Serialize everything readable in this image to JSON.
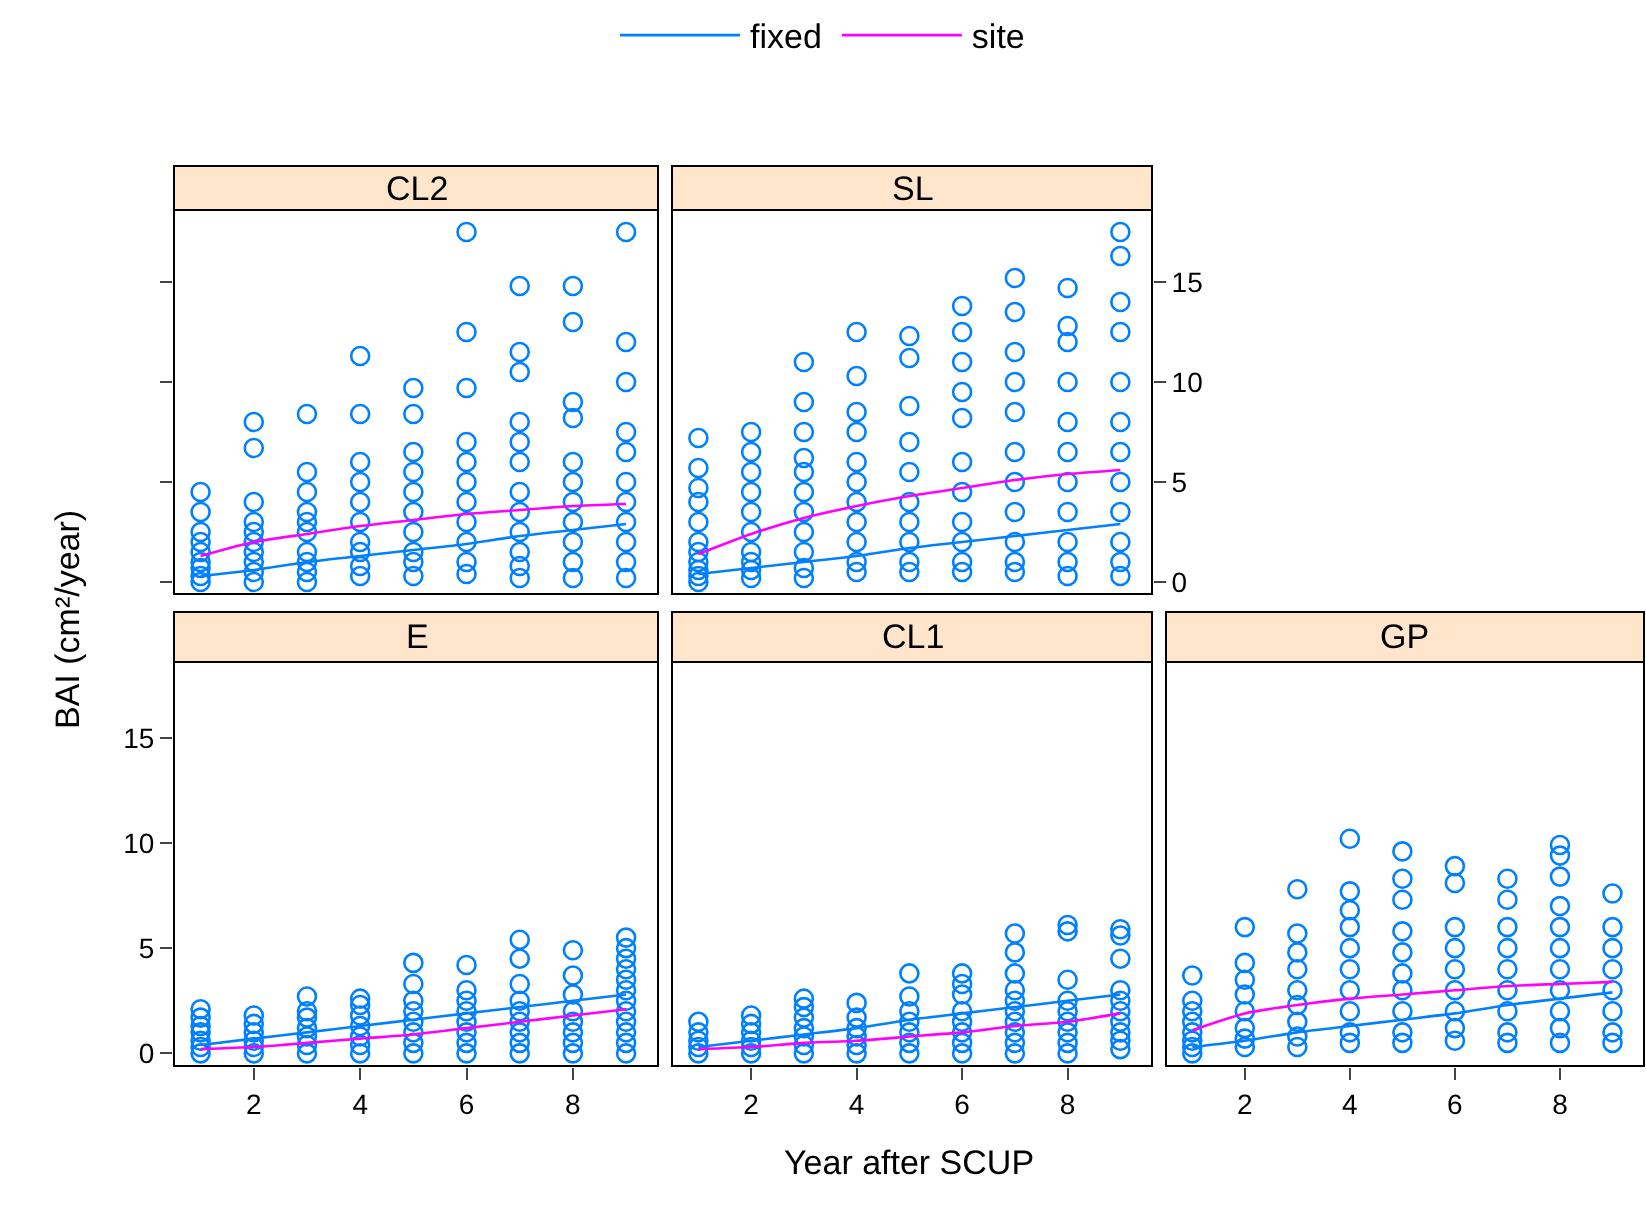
{
  "chart_data": [
    {
      "type": "scatter",
      "title": "CL2",
      "xlabel": "Year after SCUP",
      "ylabel": "BAI (cm²/year)",
      "legend": "top",
      "line_style": "solid",
      "tick_labels": false,
      "xlim": [
        0.5,
        9.6
      ],
      "ylim": [
        -0.6,
        18.6
      ],
      "xticks": [
        2,
        4,
        6,
        8
      ],
      "yticks": [
        0,
        5,
        10,
        15
      ],
      "series": [
        {
          "marker": "circle",
          "color": "#0080ff",
          "x": [
            1,
            1,
            1,
            1,
            1,
            1,
            1,
            1,
            1,
            2,
            2,
            2,
            2,
            2,
            2,
            2,
            2,
            2,
            2,
            3,
            3,
            3,
            3,
            3,
            3,
            3,
            3,
            3,
            3,
            4,
            4,
            4,
            4,
            4,
            4,
            4,
            4,
            4,
            4,
            5,
            5,
            5,
            5,
            5,
            5,
            5,
            5,
            5,
            5,
            6,
            6,
            6,
            6,
            6,
            6,
            6,
            6,
            6,
            6,
            6,
            7,
            7,
            7,
            7,
            7,
            7,
            7,
            7,
            7,
            7,
            7,
            7,
            8,
            8,
            8,
            8,
            8,
            8,
            8,
            8,
            8,
            8,
            8,
            9,
            9,
            9,
            9,
            9,
            9,
            9,
            9,
            9,
            9,
            9
          ],
          "values": [
            0,
            0.3,
            0.7,
            1,
            1.5,
            2,
            2.5,
            3.5,
            4.5,
            0,
            0.5,
            1,
            1.5,
            2,
            2.5,
            3,
            4,
            6.7,
            8,
            0,
            0.5,
            1,
            1.5,
            2.5,
            3,
            3.5,
            4.5,
            5.5,
            8.4,
            0.3,
            0.8,
            1.5,
            2,
            3,
            4,
            5,
            6,
            8.4,
            11.3,
            0.3,
            1,
            1.5,
            2.5,
            3.5,
            4.5,
            5.5,
            6.5,
            8.4,
            9.7,
            0.4,
            1,
            2,
            3,
            4,
            5,
            6,
            7,
            9.7,
            12.5,
            17.5,
            0.2,
            0.8,
            1.5,
            2.5,
            3.5,
            4.5,
            6,
            7,
            8,
            10.5,
            11.5,
            14.8,
            0.2,
            1,
            2,
            3,
            4,
            5,
            6,
            8.2,
            9,
            13,
            14.8,
            0.2,
            1,
            2,
            3,
            4,
            5,
            6.5,
            7.5,
            10,
            12,
            17.5
          ]
        },
        {
          "type": "line",
          "name": "fixed",
          "color": "#0080ff",
          "x": [
            1,
            2,
            3,
            4,
            5,
            6,
            7,
            8,
            9
          ],
          "values": [
            0.3,
            0.6,
            1.0,
            1.3,
            1.6,
            1.9,
            2.3,
            2.6,
            2.9
          ]
        },
        {
          "type": "line",
          "name": "site",
          "color": "#ff00ff",
          "x": [
            1,
            2,
            3,
            4,
            5,
            6,
            7,
            8,
            9
          ],
          "values": [
            1.3,
            2.0,
            2.4,
            2.8,
            3.1,
            3.4,
            3.6,
            3.8,
            3.9
          ]
        }
      ]
    },
    {
      "type": "scatter",
      "title": "SL",
      "line_style": "solid",
      "tick_labels": "y",
      "xlim": [
        0.5,
        9.6
      ],
      "ylim": [
        -0.6,
        18.6
      ],
      "xticks": [
        2,
        4,
        6,
        8
      ],
      "yticks": [
        0,
        5,
        10,
        15
      ],
      "series": [
        {
          "marker": "circle",
          "color": "#0080ff",
          "x": [
            1,
            1,
            1,
            1,
            1,
            1,
            1,
            1,
            1,
            1,
            1,
            2,
            2,
            2,
            2,
            2,
            2,
            2,
            2,
            2,
            2,
            3,
            3,
            3,
            3,
            3,
            3,
            3,
            3,
            3,
            3,
            3,
            4,
            4,
            4,
            4,
            4,
            4,
            4,
            4,
            4,
            4,
            4,
            5,
            5,
            5,
            5,
            5,
            5,
            5,
            5,
            5,
            5,
            6,
            6,
            6,
            6,
            6,
            6,
            6,
            6,
            6,
            6,
            6,
            7,
            7,
            7,
            7,
            7,
            7,
            7,
            7,
            7,
            7,
            7,
            8,
            8,
            8,
            8,
            8,
            8,
            8,
            8,
            8,
            8,
            8,
            9,
            9,
            9,
            9,
            9,
            9,
            9,
            9,
            9,
            9,
            9,
            9
          ],
          "values": [
            0,
            0.3,
            0.6,
            1,
            1.5,
            2,
            3,
            4,
            4.7,
            5.7,
            7.2,
            0.2,
            0.6,
            1,
            1.5,
            2.5,
            3.5,
            4.5,
            5.5,
            6.5,
            7.5,
            0.2,
            0.7,
            1.5,
            2.5,
            3.5,
            4.5,
            5.5,
            6.2,
            7.5,
            9,
            11,
            0.5,
            1,
            2,
            3,
            4,
            5,
            6,
            7.5,
            8.5,
            10.3,
            12.5,
            0.5,
            1,
            2,
            3,
            4,
            5.5,
            7,
            8.8,
            11.2,
            12.3,
            0.5,
            1,
            2,
            3,
            4.5,
            6,
            8.2,
            9.5,
            11,
            12.5,
            13.8,
            0.5,
            1,
            2,
            3.5,
            5,
            6.5,
            8.5,
            10,
            11.5,
            13.5,
            15.2,
            0.3,
            1,
            2,
            3.5,
            5,
            6.5,
            8,
            10,
            12,
            12.8,
            14.7,
            0.3,
            1,
            2,
            3.5,
            5,
            6.5,
            8,
            10,
            12.5,
            14,
            16.3,
            17.5
          ]
        },
        {
          "type": "line",
          "color": "#0080ff",
          "x": [
            1,
            2,
            3,
            4,
            5,
            6,
            7,
            8,
            9
          ],
          "values": [
            0.4,
            0.7,
            1.0,
            1.3,
            1.7,
            2.0,
            2.3,
            2.6,
            2.9
          ]
        },
        {
          "type": "line",
          "color": "#ff00ff",
          "x": [
            1,
            2,
            3,
            4,
            5,
            6,
            7,
            8,
            9
          ],
          "values": [
            1.4,
            2.4,
            3.2,
            3.8,
            4.3,
            4.7,
            5.1,
            5.4,
            5.6
          ]
        }
      ]
    },
    {
      "type": "scatter",
      "title": "E",
      "line_style": "solid",
      "xlim": [
        0.5,
        9.6
      ],
      "ylim": [
        -0.6,
        18.6
      ],
      "xticks": [
        2,
        4,
        6,
        8
      ],
      "yticks": [
        0,
        5,
        10,
        15
      ],
      "series": [
        {
          "marker": "circle",
          "color": "#0080ff",
          "x": [
            1,
            1,
            1,
            1,
            1,
            1,
            1,
            2,
            2,
            2,
            2,
            2,
            2,
            3,
            3,
            3,
            3,
            3,
            3,
            3,
            4,
            4,
            4,
            4,
            4,
            4,
            4,
            5,
            5,
            5,
            5,
            5,
            5,
            5,
            5,
            6,
            6,
            6,
            6,
            6,
            6,
            6,
            6,
            7,
            7,
            7,
            7,
            7,
            7,
            7,
            7,
            7,
            8,
            8,
            8,
            8,
            8,
            8,
            8,
            8,
            9,
            9,
            9,
            9,
            9,
            9,
            9,
            9,
            9,
            9,
            9,
            9
          ],
          "values": [
            0,
            0.3,
            0.6,
            1,
            1.3,
            1.7,
            2.1,
            0,
            0.3,
            0.6,
            1,
            1.4,
            1.8,
            0,
            0.4,
            0.8,
            1.2,
            1.7,
            2,
            2.7,
            0,
            0.4,
            0.8,
            1.3,
            1.8,
            2.3,
            2.6,
            0,
            0.5,
            1,
            1.5,
            2,
            2.5,
            3.3,
            4.3,
            0,
            0.5,
            1,
            1.5,
            2,
            2.5,
            3,
            4.2,
            0,
            0.5,
            1,
            1.5,
            2,
            2.5,
            3.3,
            4.5,
            5.4,
            0,
            0.5,
            1,
            1.5,
            2,
            2.8,
            3.7,
            4.9,
            0,
            0.5,
            1,
            1.5,
            2,
            2.5,
            3,
            3.5,
            4,
            4.5,
            5,
            5.5
          ]
        },
        {
          "type": "line",
          "color": "#0080ff",
          "x": [
            1,
            2,
            3,
            4,
            5,
            6,
            7,
            8,
            9
          ],
          "values": [
            0.4,
            0.7,
            1.0,
            1.3,
            1.6,
            1.9,
            2.2,
            2.5,
            2.8
          ]
        },
        {
          "type": "line",
          "color": "#ff00ff",
          "x": [
            1,
            2,
            3,
            4,
            5,
            6,
            7,
            8,
            9
          ],
          "values": [
            0.2,
            0.3,
            0.5,
            0.7,
            0.9,
            1.2,
            1.5,
            1.8,
            2.1
          ]
        }
      ]
    },
    {
      "type": "scatter",
      "title": "CL1",
      "line_style": "solid",
      "tick_labels": "x",
      "xlim": [
        0.5,
        9.6
      ],
      "ylim": [
        -0.6,
        18.6
      ],
      "xticks": [
        2,
        4,
        6,
        8
      ],
      "yticks": [
        0,
        5,
        10,
        15
      ],
      "series": [
        {
          "marker": "circle",
          "color": "#0080ff",
          "x": [
            1,
            1,
            1,
            1,
            1,
            2,
            2,
            2,
            2,
            2,
            2,
            3,
            3,
            3,
            3,
            3,
            3,
            3,
            4,
            4,
            4,
            4,
            4,
            4,
            5,
            5,
            5,
            5,
            5,
            5,
            5,
            6,
            6,
            6,
            6,
            6,
            6,
            6,
            6,
            7,
            7,
            7,
            7,
            7,
            7,
            7,
            7,
            7,
            7,
            8,
            8,
            8,
            8,
            8,
            8,
            8,
            8,
            8,
            9,
            9,
            9,
            9,
            9,
            9,
            9,
            9,
            9,
            9
          ],
          "values": [
            0,
            0.3,
            0.6,
            1,
            1.5,
            0,
            0.3,
            0.6,
            1,
            1.4,
            1.8,
            0,
            0.4,
            0.8,
            1.2,
            1.7,
            2.2,
            2.6,
            0,
            0.4,
            0.8,
            1.2,
            1.7,
            2.4,
            0,
            0.5,
            1,
            1.5,
            2,
            2.7,
            3.8,
            0,
            0.5,
            1,
            1.5,
            2,
            2.8,
            3.3,
            3.8,
            0,
            0.5,
            1,
            1.5,
            2,
            2.5,
            3,
            3.8,
            4.8,
            5.7,
            0,
            0.5,
            1,
            1.5,
            2,
            2.5,
            3.5,
            5.8,
            6.1,
            0.2,
            0.6,
            1,
            1.5,
            2,
            2.5,
            3,
            4.5,
            5.6,
            5.9
          ]
        },
        {
          "type": "line",
          "color": "#0080ff",
          "x": [
            1,
            2,
            3,
            4,
            5,
            6,
            7,
            8,
            9
          ],
          "values": [
            0.3,
            0.6,
            0.9,
            1.2,
            1.6,
            1.9,
            2.2,
            2.5,
            2.8
          ]
        },
        {
          "type": "line",
          "color": "#ff00ff",
          "x": [
            1,
            2,
            3,
            4,
            5,
            6,
            7,
            8,
            9
          ],
          "values": [
            0.2,
            0.3,
            0.5,
            0.6,
            0.8,
            1.0,
            1.3,
            1.5,
            1.9
          ]
        }
      ]
    },
    {
      "type": "scatter",
      "title": "GP",
      "line_style": "solid",
      "tick_labels": "x",
      "xlim": [
        0.5,
        9.6
      ],
      "ylim": [
        -0.6,
        18.6
      ],
      "xticks": [
        2,
        4,
        6,
        8
      ],
      "yticks": [
        0,
        5,
        10,
        15
      ],
      "series": [
        {
          "marker": "circle",
          "color": "#0080ff",
          "x": [
            1,
            1,
            1,
            1,
            1,
            1,
            1,
            1,
            2,
            2,
            2,
            2,
            2,
            2,
            2,
            2,
            3,
            3,
            3,
            3,
            3,
            3,
            3,
            3,
            3,
            4,
            4,
            4,
            4,
            4,
            4,
            4,
            4,
            4,
            4,
            5,
            5,
            5,
            5,
            5,
            5,
            5,
            5,
            5,
            5,
            6,
            6,
            6,
            6,
            6,
            6,
            6,
            6,
            6,
            7,
            7,
            7,
            7,
            7,
            7,
            7,
            7,
            7,
            8,
            8,
            8,
            8,
            8,
            8,
            8,
            8,
            8,
            8,
            8,
            9,
            9,
            9,
            9,
            9,
            9,
            9,
            9
          ],
          "values": [
            0,
            0.3,
            0.6,
            1,
            1.5,
            2,
            2.5,
            3.7,
            0.3,
            0.7,
            1.2,
            2,
            2.8,
            3.5,
            4.3,
            6,
            0.3,
            0.8,
            1.5,
            2.3,
            3,
            4,
            4.8,
            5.7,
            7.8,
            0.5,
            1,
            2,
            3,
            4,
            5,
            6,
            6.8,
            7.7,
            10.2,
            0.5,
            1,
            2,
            3,
            3.8,
            4.8,
            5.8,
            7.3,
            8.3,
            9.6,
            0.6,
            1.2,
            2,
            3,
            4,
            5,
            6,
            8.1,
            8.9,
            0.5,
            1,
            2,
            3,
            4,
            5,
            6,
            7.3,
            8.3,
            0.5,
            1.2,
            2,
            3,
            4,
            5,
            6,
            7,
            8.4,
            9.4,
            9.9,
            0.5,
            1,
            2,
            3,
            4,
            5,
            6,
            7.6
          ]
        },
        {
          "type": "line",
          "color": "#0080ff",
          "x": [
            1,
            2,
            3,
            4,
            5,
            6,
            7,
            8,
            9
          ],
          "values": [
            0.3,
            0.6,
            1.0,
            1.3,
            1.6,
            1.9,
            2.3,
            2.6,
            2.9
          ]
        },
        {
          "type": "line",
          "color": "#ff00ff",
          "x": [
            1,
            2,
            3,
            4,
            5,
            6,
            7,
            8,
            9
          ],
          "values": [
            1.1,
            1.9,
            2.3,
            2.6,
            2.8,
            3.0,
            3.2,
            3.3,
            3.4
          ]
        }
      ]
    }
  ]
}
